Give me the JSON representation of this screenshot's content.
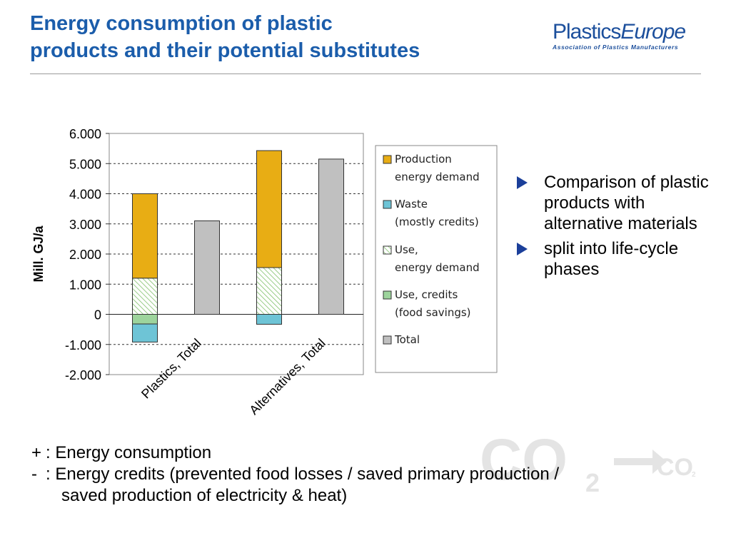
{
  "slide": {
    "title_line1": "Energy consumption of plastic",
    "title_line2": "products and their potential substitutes"
  },
  "logo": {
    "part1": "Plastics",
    "part2": "Europe",
    "tagline": "Association of Plastics Manufacturers"
  },
  "bullets": [
    "Comparison of plastic products with alternative materials",
    "split into life-cycle phases"
  ],
  "notes": {
    "plus_symbol": "+",
    "plus_text": ": Energy consumption",
    "minus_symbol": "-",
    "minus_text_line1": ": Energy credits (prevented food losses / saved primary production /",
    "minus_text_line2": "saved production of electricity & heat)"
  },
  "watermark": {
    "main": "CO",
    "sub": "2",
    "main_right": "CO",
    "sub_right": "2"
  },
  "colors": {
    "production": "#e8ad14",
    "waste": "#6ec4d6",
    "use_energy": "#d6ebc6",
    "use_credits": "#9dd49c",
    "total": "#c0c0c0",
    "accent_blue": "#1b5dab"
  },
  "chart_data": {
    "type": "bar",
    "stacked": true,
    "categories": [
      "Plastics, Total",
      "Alternatives, Total"
    ],
    "ylabel": "Mill. GJ/a",
    "ylim": [
      -2000,
      6000
    ],
    "yticks": [
      -2000,
      -1000,
      0,
      1000,
      2000,
      3000,
      4000,
      5000,
      6000
    ],
    "ytick_labels": [
      "-2.000",
      "-1.000",
      "0",
      "1.000",
      "2.000",
      "3.000",
      "4.000",
      "5.000",
      "6.000"
    ],
    "grid": true,
    "legend_position": "right",
    "series": [
      {
        "name": "Production energy demand",
        "legend_line1": "Production",
        "legend_line2": "energy demand",
        "values": [
          2800,
          3880
        ]
      },
      {
        "name": "Waste (mostly credits)",
        "legend_line1": "Waste",
        "legend_line2": "(mostly credits)",
        "values": [
          -600,
          -330
        ]
      },
      {
        "name": "Use, energy demand",
        "legend_line1": "Use,",
        "legend_line2": "energy demand",
        "values": [
          1200,
          1550
        ]
      },
      {
        "name": "Use, credits (food savings)",
        "legend_line1": "Use, credits",
        "legend_line2": "(food savings)",
        "values": [
          -320,
          0
        ]
      },
      {
        "name": "Total",
        "legend_line1": "Total",
        "legend_line2": "",
        "values": [
          3100,
          5150
        ]
      }
    ]
  }
}
